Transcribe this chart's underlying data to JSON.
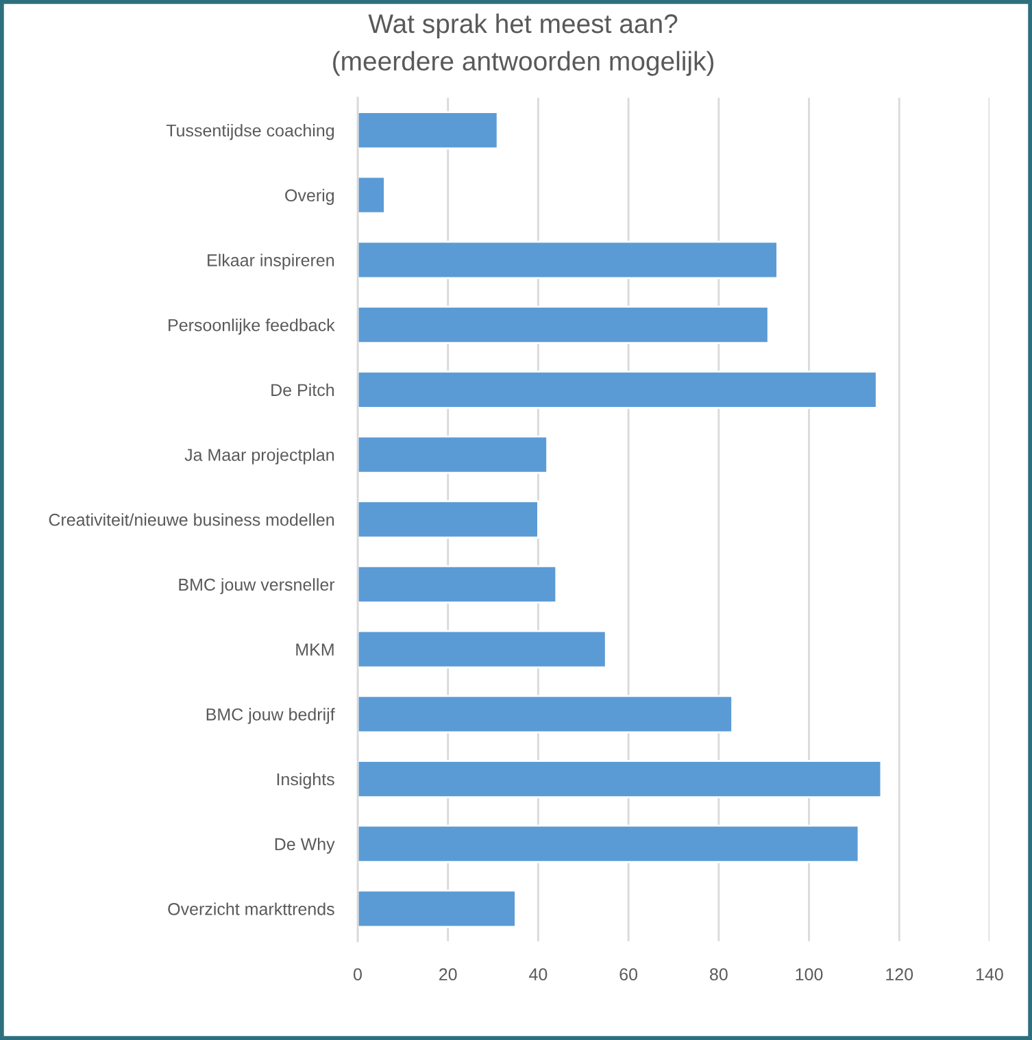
{
  "chart_data": {
    "type": "bar",
    "orientation": "horizontal",
    "title": "Wat sprak het meest aan?",
    "subtitle": "(meerdere antwoorden mogelijk)",
    "categories": [
      "Tussentijdse coaching",
      "Overig",
      "Elkaar inspireren",
      "Persoonlijke feedback",
      "De Pitch",
      "Ja Maar projectplan",
      "Creativiteit/nieuwe business modellen",
      "BMC jouw versneller",
      "MKM",
      "BMC jouw bedrijf",
      "Insights",
      "De Why",
      "Overzicht markttrends"
    ],
    "values": [
      31,
      6,
      93,
      91,
      115,
      42,
      40,
      44,
      55,
      83,
      116,
      111,
      35
    ],
    "color": "#5b9bd5",
    "xlim": [
      0,
      140
    ],
    "xticks": [
      0,
      20,
      40,
      60,
      80,
      100,
      120,
      140
    ],
    "grid": "x"
  }
}
